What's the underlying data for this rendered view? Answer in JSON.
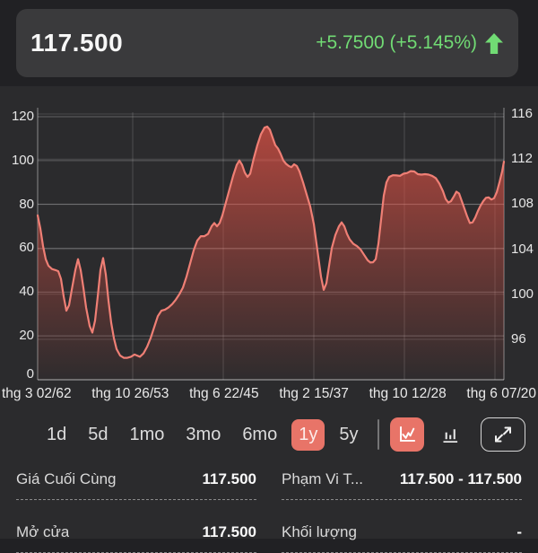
{
  "header": {
    "price": "117.500",
    "change": "+5.7500 (+5.145%)",
    "change_color": "#71db74",
    "arrow_icon": "up-arrow"
  },
  "chart_data": {
    "type": "area",
    "line_color": "#ef7f75",
    "fill_color": "#dc5044",
    "grid": true,
    "left_axis": {
      "ticks": [
        120,
        100,
        80,
        60,
        40,
        20,
        0
      ],
      "range": [
        0,
        120
      ]
    },
    "right_axis": {
      "ticks": [
        116,
        112,
        108,
        104,
        100,
        96
      ],
      "range": [
        96,
        116
      ]
    },
    "x_labels": [
      "thg 3 02/62",
      "thg 10 26/53",
      "thg 6 22/45",
      "thg 2 15/37",
      "thg 10 12/28",
      "thg 6 07/20"
    ],
    "points": [
      [
        42,
        75
      ],
      [
        45,
        69
      ],
      [
        48,
        61
      ],
      [
        51,
        55
      ],
      [
        54,
        52
      ],
      [
        58,
        50.5
      ],
      [
        62,
        50
      ],
      [
        65,
        49.5
      ],
      [
        68,
        46
      ],
      [
        71,
        38
      ],
      [
        74,
        31.5
      ],
      [
        77,
        34
      ],
      [
        80,
        41
      ],
      [
        84,
        50
      ],
      [
        87,
        55
      ],
      [
        90,
        50
      ],
      [
        93,
        42
      ],
      [
        96,
        33
      ],
      [
        100,
        24.5
      ],
      [
        103,
        21.5
      ],
      [
        106,
        27
      ],
      [
        109,
        38
      ],
      [
        112,
        50
      ],
      [
        115,
        55.5
      ],
      [
        118,
        48
      ],
      [
        121,
        36
      ],
      [
        124,
        26
      ],
      [
        127,
        19
      ],
      [
        130,
        14
      ],
      [
        134,
        11
      ],
      [
        138,
        10
      ],
      [
        142,
        10
      ],
      [
        146,
        10.5
      ],
      [
        150,
        11.5
      ],
      [
        153,
        11
      ],
      [
        156,
        10.5
      ],
      [
        160,
        12
      ],
      [
        164,
        15
      ],
      [
        168,
        19
      ],
      [
        172,
        24
      ],
      [
        176,
        29
      ],
      [
        180,
        31.5
      ],
      [
        184,
        32
      ],
      [
        188,
        33
      ],
      [
        192,
        34.5
      ],
      [
        196,
        36.5
      ],
      [
        200,
        39
      ],
      [
        204,
        42
      ],
      [
        208,
        47
      ],
      [
        212,
        53
      ],
      [
        216,
        59
      ],
      [
        220,
        63.5
      ],
      [
        224,
        65.5
      ],
      [
        228,
        65.5
      ],
      [
        232,
        66.5
      ],
      [
        236,
        70
      ],
      [
        239,
        71.5
      ],
      [
        242,
        70
      ],
      [
        245,
        71.5
      ],
      [
        248,
        75
      ],
      [
        252,
        81
      ],
      [
        256,
        87
      ],
      [
        260,
        93
      ],
      [
        264,
        98
      ],
      [
        267,
        100
      ],
      [
        270,
        98
      ],
      [
        273,
        94.5
      ],
      [
        276,
        92.5
      ],
      [
        279,
        94
      ],
      [
        283,
        101
      ],
      [
        287,
        107
      ],
      [
        291,
        112
      ],
      [
        295,
        115
      ],
      [
        298,
        115.5
      ],
      [
        301,
        114
      ],
      [
        304,
        110.5
      ],
      [
        307,
        107
      ],
      [
        310,
        105.5
      ],
      [
        313,
        103
      ],
      [
        316,
        100
      ],
      [
        319,
        98.5
      ],
      [
        322,
        97.5
      ],
      [
        325,
        97
      ],
      [
        328,
        98.3
      ],
      [
        331,
        97.5
      ],
      [
        334,
        95
      ],
      [
        338,
        90
      ],
      [
        342,
        84.5
      ],
      [
        346,
        79
      ],
      [
        350,
        71
      ],
      [
        354,
        59
      ],
      [
        358,
        47
      ],
      [
        361,
        41
      ],
      [
        364,
        44
      ],
      [
        367,
        52
      ],
      [
        370,
        60
      ],
      [
        374,
        66
      ],
      [
        378,
        70
      ],
      [
        381,
        71.8
      ],
      [
        384,
        70
      ],
      [
        387,
        66.5
      ],
      [
        390,
        64
      ],
      [
        394,
        62
      ],
      [
        398,
        61
      ],
      [
        402,
        59.5
      ],
      [
        406,
        57
      ],
      [
        410,
        54.5
      ],
      [
        413,
        53.5
      ],
      [
        416,
        53.6
      ],
      [
        419,
        55
      ],
      [
        422,
        62
      ],
      [
        425,
        73
      ],
      [
        428,
        84
      ],
      [
        431,
        90
      ],
      [
        434,
        92.5
      ],
      [
        438,
        93.3
      ],
      [
        442,
        93.2
      ],
      [
        446,
        93
      ],
      [
        450,
        94
      ],
      [
        454,
        94.3
      ],
      [
        458,
        95.2
      ],
      [
        462,
        95
      ],
      [
        466,
        93.8
      ],
      [
        470,
        93.6
      ],
      [
        474,
        93.8
      ],
      [
        478,
        93.6
      ],
      [
        482,
        93
      ],
      [
        486,
        92
      ],
      [
        490,
        89.5
      ],
      [
        494,
        86
      ],
      [
        497,
        82.5
      ],
      [
        500,
        80.8
      ],
      [
        503,
        81.5
      ],
      [
        506,
        83.5
      ],
      [
        509,
        85.8
      ],
      [
        512,
        85
      ],
      [
        515,
        81.5
      ],
      [
        518,
        78
      ],
      [
        521,
        74.5
      ],
      [
        524,
        71.5
      ],
      [
        527,
        71.8
      ],
      [
        530,
        74
      ],
      [
        533,
        77
      ],
      [
        536,
        79.5
      ],
      [
        539,
        81.5
      ],
      [
        542,
        83
      ],
      [
        545,
        83.2
      ],
      [
        548,
        82.2
      ],
      [
        551,
        82.8
      ],
      [
        554,
        85.5
      ],
      [
        557,
        90
      ],
      [
        560,
        95
      ],
      [
        562,
        99.5
      ]
    ]
  },
  "ranges": {
    "options": [
      {
        "label": "1d",
        "selected": false
      },
      {
        "label": "5d",
        "selected": false
      },
      {
        "label": "1mo",
        "selected": false
      },
      {
        "label": "3mo",
        "selected": false
      },
      {
        "label": "6mo",
        "selected": false
      },
      {
        "label": "1y",
        "selected": true
      },
      {
        "label": "5y",
        "selected": false
      }
    ]
  },
  "chart_type": {
    "line_selected": true,
    "bar_selected": false
  },
  "accent_color": "#e87468",
  "stats": {
    "rows": [
      [
        {
          "label": "Giá Cuối Cùng",
          "value": "117.500"
        },
        {
          "label": "Phạm Vi T...",
          "value": "117.500 - 117.500"
        }
      ],
      [
        {
          "label": "Mở cửa",
          "value": "117.500"
        },
        {
          "label": "Khối lượng",
          "value": "-"
        }
      ]
    ]
  }
}
